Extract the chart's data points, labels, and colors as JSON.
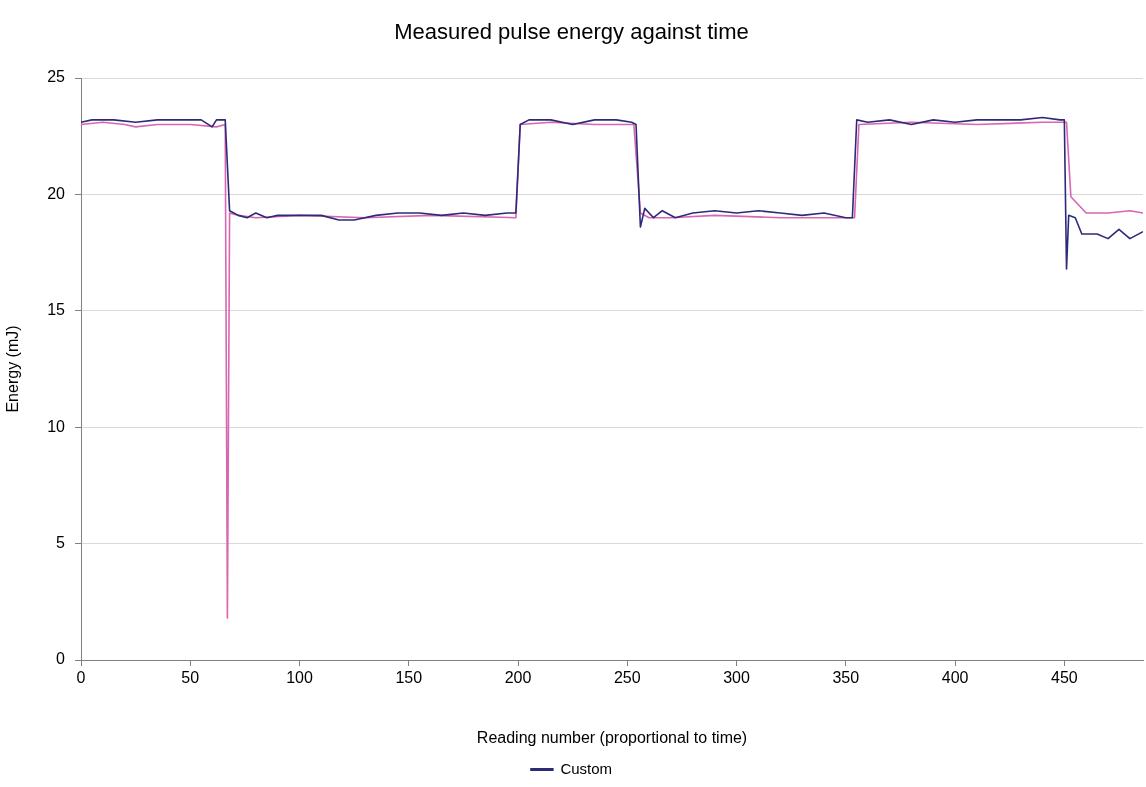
{
  "chart_data": {
    "type": "line",
    "title": "Measured pulse energy against time",
    "xlabel": "Reading number (proportional to time)",
    "ylabel": "Energy (mJ)",
    "xlim": [
      0,
      486
    ],
    "xticks": [
      0,
      50,
      100,
      150,
      200,
      250,
      300,
      350,
      400,
      450
    ],
    "ylim": [
      0,
      25
    ],
    "yticks": [
      0,
      5,
      10,
      15,
      20,
      25
    ],
    "grid": "y",
    "legend": "bottom",
    "marker": "none",
    "line_style": "solid",
    "series": [
      {
        "name": "Custom",
        "color": "#2e2a7a",
        "x": [
          0,
          5,
          15,
          25,
          35,
          45,
          55,
          60,
          62,
          66,
          68,
          72,
          76,
          80,
          85,
          90,
          100,
          110,
          118,
          125,
          135,
          145,
          155,
          165,
          175,
          185,
          195,
          199,
          201,
          205,
          215,
          225,
          235,
          245,
          252,
          254,
          256,
          258,
          262,
          266,
          272,
          280,
          290,
          300,
          310,
          320,
          330,
          340,
          350,
          353,
          355,
          360,
          370,
          380,
          390,
          400,
          410,
          420,
          430,
          440,
          448,
          450,
          451,
          452,
          455,
          458,
          465,
          470,
          475,
          480,
          486
        ],
        "values": [
          23.1,
          23.2,
          23.2,
          23.1,
          23.2,
          23.2,
          23.2,
          22.9,
          23.2,
          23.2,
          19.3,
          19.1,
          19.0,
          19.2,
          19.0,
          19.1,
          19.1,
          19.1,
          18.9,
          18.9,
          19.1,
          19.2,
          19.2,
          19.1,
          19.2,
          19.1,
          19.2,
          19.2,
          23.0,
          23.2,
          23.2,
          23.0,
          23.2,
          23.2,
          23.1,
          23.0,
          18.6,
          19.4,
          19.0,
          19.3,
          19.0,
          19.2,
          19.3,
          19.2,
          19.3,
          19.2,
          19.1,
          19.2,
          19.0,
          19.0,
          23.2,
          23.1,
          23.2,
          23.0,
          23.2,
          23.1,
          23.2,
          23.2,
          23.2,
          23.3,
          23.2,
          23.2,
          16.8,
          19.1,
          19.0,
          18.3,
          18.3,
          18.1,
          18.5,
          18.1,
          18.4
        ]
      },
      {
        "color": "#d966b0",
        "x": [
          0,
          10,
          20,
          25,
          35,
          50,
          62,
          66,
          67,
          68,
          72,
          80,
          100,
          130,
          160,
          199,
          201,
          215,
          235,
          253,
          256,
          260,
          270,
          290,
          320,
          354,
          356,
          380,
          410,
          440,
          451,
          453,
          456,
          460,
          470,
          480,
          486
        ],
        "values": [
          23.0,
          23.1,
          23.0,
          22.9,
          23.0,
          23.0,
          22.9,
          23.0,
          1.8,
          19.2,
          19.1,
          19.0,
          19.1,
          19.0,
          19.1,
          19.0,
          23.0,
          23.1,
          23.0,
          23.0,
          19.2,
          19.0,
          19.0,
          19.1,
          19.0,
          19.0,
          23.0,
          23.1,
          23.0,
          23.1,
          23.1,
          19.9,
          19.6,
          19.2,
          19.2,
          19.3,
          19.2
        ]
      }
    ]
  }
}
